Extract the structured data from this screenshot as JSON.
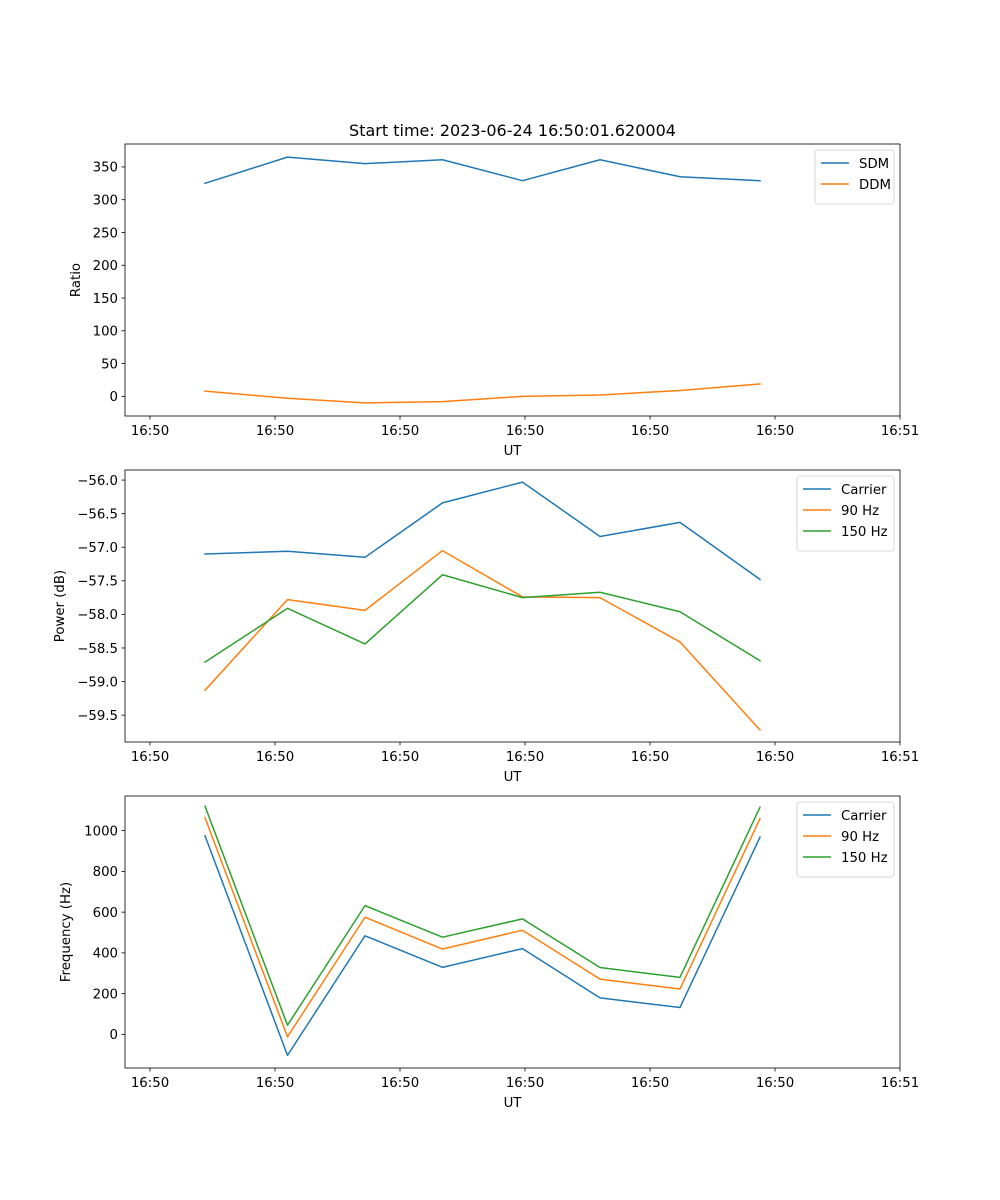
{
  "figure": {
    "title": "Start time: 2023-06-24 16:50:01.620004"
  },
  "chart_data": [
    {
      "type": "line",
      "title": "Start time: 2023-06-24 16:50:01.620004",
      "xlabel": "UT",
      "ylabel": "Ratio",
      "x_seconds": [
        1.62,
        1.95,
        2.26,
        2.57,
        2.89,
        3.2,
        3.52,
        3.84
      ],
      "xlim_seconds": [
        1.3,
        4.4
      ],
      "x_tick_seconds": [
        1.4,
        1.9,
        2.4,
        2.9,
        3.4,
        3.9,
        4.4
      ],
      "x_tick_labels": [
        "16:50",
        "16:50",
        "16:50",
        "16:50",
        "16:50",
        "16:50",
        "16:51"
      ],
      "ylim": [
        -30,
        385
      ],
      "y_ticks": [
        0,
        50,
        100,
        150,
        200,
        250,
        300,
        350
      ],
      "y_tick_labels": [
        "0",
        "50",
        "100",
        "150",
        "200",
        "250",
        "300",
        "350"
      ],
      "grid": false,
      "legend_position": "top-right",
      "series": [
        {
          "name": "SDM",
          "color": "#1f77b4",
          "values": [
            325,
            365,
            355,
            361,
            329,
            361,
            335,
            329
          ]
        },
        {
          "name": "DDM",
          "color": "#ff7f0e",
          "values": [
            8,
            -3,
            -10,
            -8,
            0,
            2,
            9,
            19
          ]
        }
      ]
    },
    {
      "type": "line",
      "title": "",
      "xlabel": "UT",
      "ylabel": "Power (dB)",
      "x_seconds": [
        1.62,
        1.95,
        2.26,
        2.57,
        2.89,
        3.2,
        3.52,
        3.84
      ],
      "xlim_seconds": [
        1.3,
        4.4
      ],
      "x_tick_seconds": [
        1.4,
        1.9,
        2.4,
        2.9,
        3.4,
        3.9,
        4.4
      ],
      "x_tick_labels": [
        "16:50",
        "16:50",
        "16:50",
        "16:50",
        "16:50",
        "16:50",
        "16:51"
      ],
      "ylim": [
        -59.9,
        -55.85
      ],
      "y_ticks": [
        -59.5,
        -59.0,
        -58.5,
        -58.0,
        -57.5,
        -57.0,
        -56.5,
        -56.0
      ],
      "y_tick_labels": [
        "−59.5",
        "−59.0",
        "−58.5",
        "−58.0",
        "−57.5",
        "−57.0",
        "−56.5",
        "−56.0"
      ],
      "grid": false,
      "legend_position": "top-right",
      "series": [
        {
          "name": "Carrier",
          "color": "#1f77b4",
          "values": [
            -57.1,
            -57.06,
            -57.15,
            -56.34,
            -56.03,
            -56.84,
            -56.63,
            -57.48
          ]
        },
        {
          "name": "90 Hz",
          "color": "#ff7f0e",
          "values": [
            -59.13,
            -57.78,
            -57.94,
            -57.05,
            -57.74,
            -57.75,
            -58.41,
            -59.72
          ]
        },
        {
          "name": "150 Hz",
          "color": "#2ca02c",
          "values": [
            -58.71,
            -57.91,
            -58.44,
            -57.41,
            -57.75,
            -57.67,
            -57.96,
            -58.69
          ]
        }
      ]
    },
    {
      "type": "line",
      "title": "",
      "xlabel": "UT",
      "ylabel": "Frequency (Hz)",
      "x_seconds": [
        1.62,
        1.95,
        2.26,
        2.57,
        2.89,
        3.2,
        3.52,
        3.84
      ],
      "xlim_seconds": [
        1.3,
        4.4
      ],
      "x_tick_seconds": [
        1.4,
        1.9,
        2.4,
        2.9,
        3.4,
        3.9,
        4.4
      ],
      "x_tick_labels": [
        "16:50",
        "16:50",
        "16:50",
        "16:50",
        "16:50",
        "16:50",
        "16:51"
      ],
      "ylim": [
        -165,
        1170
      ],
      "y_ticks": [
        0,
        200,
        400,
        600,
        800,
        1000
      ],
      "y_tick_labels": [
        "0",
        "200",
        "400",
        "600",
        "800",
        "1000"
      ],
      "grid": false,
      "legend_position": "top-right",
      "series": [
        {
          "name": "Carrier",
          "color": "#1f77b4",
          "values": [
            975,
            -103,
            484,
            329,
            421,
            179,
            132,
            968
          ]
        },
        {
          "name": "90 Hz",
          "color": "#ff7f0e",
          "values": [
            1064,
            -12,
            575,
            419,
            511,
            271,
            223,
            1059
          ]
        },
        {
          "name": "150 Hz",
          "color": "#2ca02c",
          "values": [
            1120,
            45,
            632,
            477,
            567,
            328,
            280,
            1115
          ]
        }
      ]
    }
  ]
}
